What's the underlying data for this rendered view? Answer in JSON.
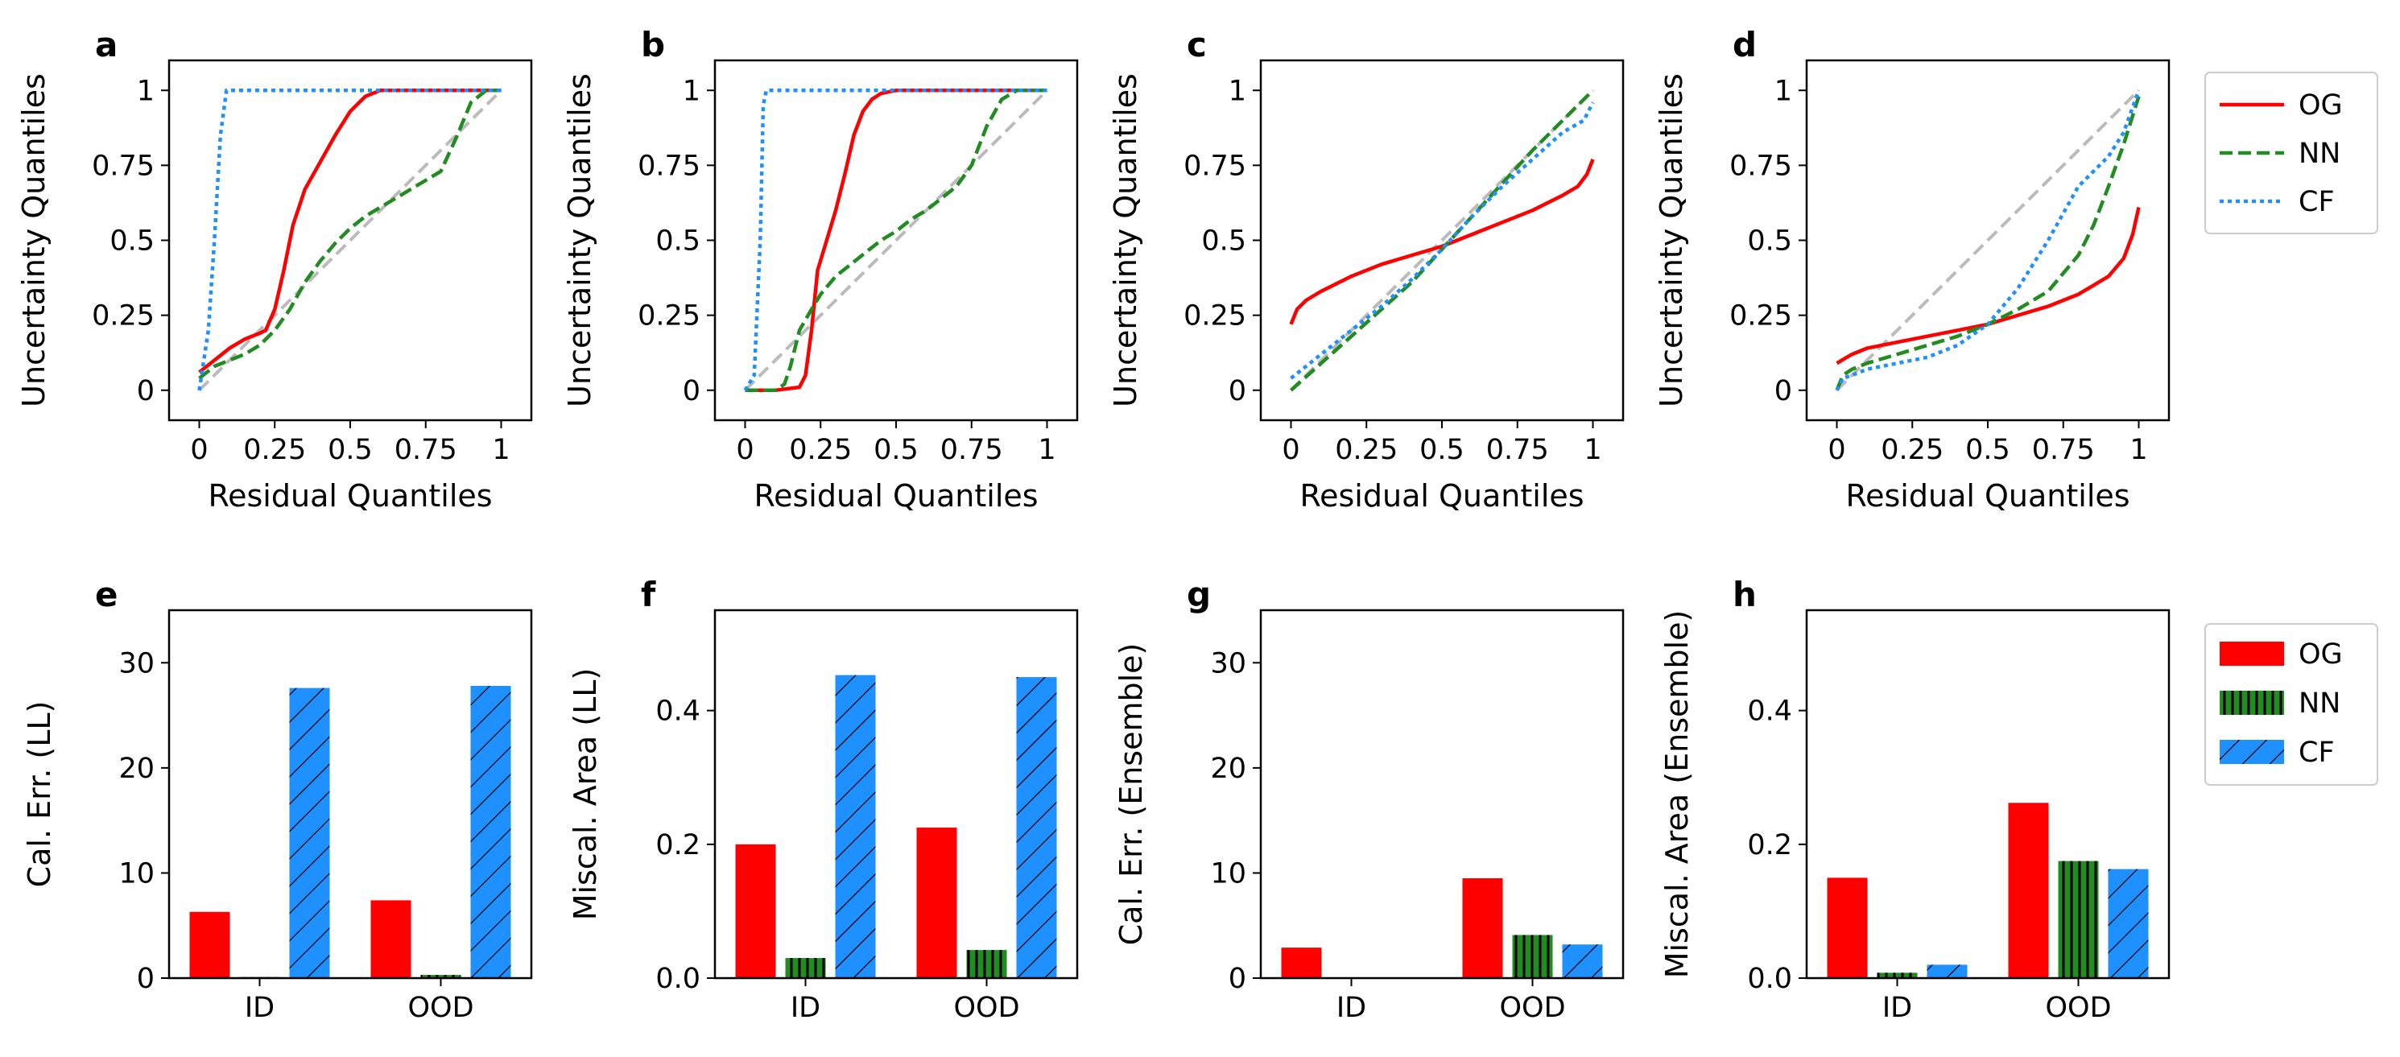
{
  "colors": {
    "OG": "#ff0000",
    "NN": "#228b22",
    "CF": "#1e90ff",
    "diagonal": "#bbbbbb"
  },
  "legends": {
    "lines": [
      "OG",
      "NN",
      "CF"
    ],
    "bars": [
      "OG",
      "NN",
      "CF"
    ]
  },
  "chart_data": [
    {
      "panel": "a",
      "type": "line",
      "xlabel": "Residual Quantiles",
      "ylabel": "Uncertainty Quantiles",
      "xlim": [
        -0.1,
        1.1
      ],
      "ylim": [
        -0.1,
        1.1
      ],
      "xticks": [
        0,
        0.25,
        0.5,
        0.75,
        1
      ],
      "xtick_labels": [
        "0",
        "0.25",
        "0.5",
        "0.75",
        "1"
      ],
      "yticks": [
        0,
        0.25,
        0.5,
        0.75,
        1
      ],
      "ytick_labels": [
        "0",
        "0.25",
        "0.5",
        "0.75",
        "1"
      ],
      "reference_diagonal": true,
      "series": [
        {
          "name": "OG",
          "x": [
            0,
            0.05,
            0.1,
            0.15,
            0.2,
            0.22,
            0.25,
            0.28,
            0.31,
            0.35,
            0.4,
            0.45,
            0.5,
            0.55,
            0.6,
            0.65,
            0.7,
            0.8,
            0.9,
            1
          ],
          "y": [
            0.06,
            0.1,
            0.14,
            0.17,
            0.19,
            0.2,
            0.27,
            0.4,
            0.55,
            0.67,
            0.76,
            0.85,
            0.93,
            0.98,
            1,
            1,
            1,
            1,
            1,
            1
          ]
        },
        {
          "name": "NN",
          "x": [
            0,
            0.05,
            0.1,
            0.15,
            0.2,
            0.25,
            0.3,
            0.35,
            0.4,
            0.45,
            0.5,
            0.55,
            0.6,
            0.65,
            0.7,
            0.75,
            0.8,
            0.85,
            0.9,
            0.95,
            1
          ],
          "y": [
            0.04,
            0.08,
            0.1,
            0.12,
            0.15,
            0.2,
            0.27,
            0.36,
            0.43,
            0.49,
            0.54,
            0.58,
            0.61,
            0.64,
            0.67,
            0.7,
            0.73,
            0.84,
            0.96,
            1,
            1
          ]
        },
        {
          "name": "CF",
          "x": [
            0,
            0.03,
            0.05,
            0.07,
            0.09,
            0.12,
            0.3,
            0.6,
            1
          ],
          "y": [
            0,
            0.2,
            0.5,
            0.85,
            1,
            1,
            1,
            1,
            1
          ]
        }
      ]
    },
    {
      "panel": "b",
      "type": "line",
      "xlabel": "Residual Quantiles",
      "ylabel": "Uncertainty Quantiles",
      "xlim": [
        -0.1,
        1.1
      ],
      "ylim": [
        -0.1,
        1.1
      ],
      "xticks": [
        0,
        0.25,
        0.5,
        0.75,
        1
      ],
      "xtick_labels": [
        "0",
        "0.25",
        "0.5",
        "0.75",
        "1"
      ],
      "yticks": [
        0,
        0.25,
        0.5,
        0.75,
        1
      ],
      "ytick_labels": [
        "0",
        "0.25",
        "0.5",
        "0.75",
        "1"
      ],
      "reference_diagonal": true,
      "series": [
        {
          "name": "OG",
          "x": [
            0,
            0.1,
            0.18,
            0.2,
            0.22,
            0.24,
            0.27,
            0.3,
            0.33,
            0.36,
            0.39,
            0.42,
            0.45,
            0.5,
            0.55,
            0.6,
            1
          ],
          "y": [
            0,
            0,
            0.01,
            0.05,
            0.2,
            0.4,
            0.5,
            0.6,
            0.72,
            0.85,
            0.93,
            0.97,
            0.99,
            1,
            1,
            1,
            1
          ]
        },
        {
          "name": "NN",
          "x": [
            0,
            0.1,
            0.13,
            0.15,
            0.18,
            0.22,
            0.25,
            0.3,
            0.35,
            0.4,
            0.45,
            0.5,
            0.55,
            0.6,
            0.65,
            0.7,
            0.75,
            0.8,
            0.85,
            0.9,
            0.95,
            1
          ],
          "y": [
            0,
            0,
            0.02,
            0.08,
            0.2,
            0.27,
            0.32,
            0.38,
            0.42,
            0.46,
            0.5,
            0.53,
            0.57,
            0.6,
            0.64,
            0.68,
            0.75,
            0.88,
            0.97,
            1,
            1,
            1
          ]
        },
        {
          "name": "CF",
          "x": [
            0,
            0.03,
            0.05,
            0.06,
            0.07,
            0.1,
            0.3,
            0.6,
            1
          ],
          "y": [
            0,
            0.05,
            0.5,
            0.95,
            1,
            1,
            1,
            1,
            1
          ]
        }
      ]
    },
    {
      "panel": "c",
      "type": "line",
      "xlabel": "Residual Quantiles",
      "ylabel": "Uncertainty Quantiles",
      "xlim": [
        -0.1,
        1.1
      ],
      "ylim": [
        -0.1,
        1.1
      ],
      "xticks": [
        0,
        0.25,
        0.5,
        0.75,
        1
      ],
      "xtick_labels": [
        "0",
        "0.25",
        "0.5",
        "0.75",
        "1"
      ],
      "yticks": [
        0,
        0.25,
        0.5,
        0.75,
        1
      ],
      "ytick_labels": [
        "0",
        "0.25",
        "0.5",
        "0.75",
        "1"
      ],
      "reference_diagonal": true,
      "series": [
        {
          "name": "OG",
          "x": [
            0,
            0.02,
            0.05,
            0.1,
            0.2,
            0.3,
            0.4,
            0.5,
            0.6,
            0.7,
            0.8,
            0.9,
            0.95,
            0.98,
            1
          ],
          "y": [
            0.22,
            0.27,
            0.3,
            0.33,
            0.38,
            0.42,
            0.45,
            0.48,
            0.52,
            0.56,
            0.6,
            0.65,
            0.68,
            0.72,
            0.77
          ]
        },
        {
          "name": "NN",
          "x": [
            0,
            0.1,
            0.2,
            0.3,
            0.4,
            0.5,
            0.6,
            0.7,
            0.8,
            0.9,
            1
          ],
          "y": [
            0,
            0.09,
            0.18,
            0.27,
            0.36,
            0.47,
            0.58,
            0.69,
            0.8,
            0.9,
            1
          ]
        },
        {
          "name": "CF",
          "x": [
            0,
            0.1,
            0.2,
            0.3,
            0.4,
            0.5,
            0.6,
            0.7,
            0.8,
            0.9,
            0.97,
            1
          ],
          "y": [
            0.04,
            0.12,
            0.2,
            0.28,
            0.37,
            0.47,
            0.58,
            0.68,
            0.77,
            0.86,
            0.9,
            0.96
          ]
        }
      ]
    },
    {
      "panel": "d",
      "type": "line",
      "xlabel": "Residual Quantiles",
      "ylabel": "Uncertainty Quantiles",
      "xlim": [
        -0.1,
        1.1
      ],
      "ylim": [
        -0.1,
        1.1
      ],
      "xticks": [
        0,
        0.25,
        0.5,
        0.75,
        1
      ],
      "xtick_labels": [
        "0",
        "0.25",
        "0.5",
        "0.75",
        "1"
      ],
      "yticks": [
        0,
        0.25,
        0.5,
        0.75,
        1
      ],
      "ytick_labels": [
        "0",
        "0.25",
        "0.5",
        "0.75",
        "1"
      ],
      "reference_diagonal": true,
      "series": [
        {
          "name": "OG",
          "x": [
            0,
            0.05,
            0.1,
            0.2,
            0.3,
            0.4,
            0.5,
            0.6,
            0.7,
            0.8,
            0.85,
            0.9,
            0.95,
            0.98,
            1
          ],
          "y": [
            0.09,
            0.12,
            0.14,
            0.16,
            0.18,
            0.2,
            0.22,
            0.25,
            0.28,
            0.32,
            0.35,
            0.38,
            0.44,
            0.52,
            0.61
          ]
        },
        {
          "name": "NN",
          "x": [
            0,
            0.02,
            0.05,
            0.1,
            0.2,
            0.3,
            0.4,
            0.5,
            0.6,
            0.7,
            0.8,
            0.85,
            0.9,
            0.95,
            1
          ],
          "y": [
            0,
            0.05,
            0.07,
            0.09,
            0.12,
            0.15,
            0.18,
            0.22,
            0.27,
            0.33,
            0.45,
            0.55,
            0.68,
            0.82,
            0.98
          ]
        },
        {
          "name": "CF",
          "x": [
            0,
            0.02,
            0.05,
            0.1,
            0.2,
            0.3,
            0.4,
            0.5,
            0.6,
            0.7,
            0.8,
            0.9,
            0.95,
            1
          ],
          "y": [
            0,
            0.04,
            0.05,
            0.07,
            0.09,
            0.11,
            0.15,
            0.22,
            0.34,
            0.5,
            0.68,
            0.78,
            0.86,
            1
          ]
        }
      ]
    },
    {
      "panel": "e",
      "type": "bar",
      "categories": [
        "ID",
        "OOD"
      ],
      "ylabel": "Cal. Err. (LL)",
      "ylim": [
        0,
        35
      ],
      "yticks": [
        0,
        10,
        20,
        30
      ],
      "ytick_labels": [
        "0",
        "10",
        "20",
        "30"
      ],
      "series": [
        {
          "name": "OG",
          "values": [
            6.3,
            7.4
          ]
        },
        {
          "name": "NN",
          "values": [
            0.1,
            0.3
          ]
        },
        {
          "name": "CF",
          "values": [
            27.6,
            27.8
          ]
        }
      ]
    },
    {
      "panel": "f",
      "type": "bar",
      "categories": [
        "ID",
        "OOD"
      ],
      "ylabel": "Miscal. Area (LL)",
      "ylim": [
        0,
        0.55
      ],
      "yticks": [
        0,
        0.2,
        0.4
      ],
      "ytick_labels": [
        "0.0",
        "0.2",
        "0.4"
      ],
      "series": [
        {
          "name": "OG",
          "values": [
            0.2,
            0.225
          ]
        },
        {
          "name": "NN",
          "values": [
            0.03,
            0.042
          ]
        },
        {
          "name": "CF",
          "values": [
            0.453,
            0.45
          ]
        }
      ]
    },
    {
      "panel": "g",
      "type": "bar",
      "categories": [
        "ID",
        "OOD"
      ],
      "ylabel": "Cal. Err. (Ensemble)",
      "ylim": [
        0,
        35
      ],
      "yticks": [
        0,
        10,
        20,
        30
      ],
      "ytick_labels": [
        "0",
        "10",
        "20",
        "30"
      ],
      "series": [
        {
          "name": "OG",
          "values": [
            2.9,
            9.5
          ]
        },
        {
          "name": "NN",
          "values": [
            0,
            4.1
          ]
        },
        {
          "name": "CF",
          "values": [
            0,
            3.2
          ]
        }
      ]
    },
    {
      "panel": "h",
      "type": "bar",
      "categories": [
        "ID",
        "OOD"
      ],
      "ylabel": "Miscal. Area (Ensemble)",
      "ylim": [
        0,
        0.55
      ],
      "yticks": [
        0,
        0.2,
        0.4
      ],
      "ytick_labels": [
        "0.0",
        "0.2",
        "0.4"
      ],
      "series": [
        {
          "name": "OG",
          "values": [
            0.15,
            0.262
          ]
        },
        {
          "name": "NN",
          "values": [
            0.008,
            0.175
          ]
        },
        {
          "name": "CF",
          "values": [
            0.02,
            0.163
          ]
        }
      ]
    }
  ]
}
